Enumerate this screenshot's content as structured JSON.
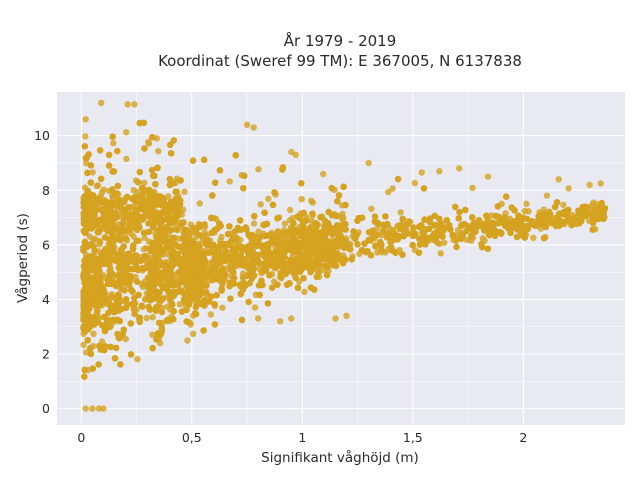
{
  "chart_data": {
    "type": "scatter",
    "title_line1": "År 1979 - 2019",
    "title_line2": "Koordinat (Sweref 99 TM): E 367005, N 6137838",
    "xlabel": "Signifikant våghöjd (m)",
    "ylabel": "Vågperiod (s)",
    "xlim": [
      -0.11,
      2.46
    ],
    "ylim": [
      -0.6,
      11.6
    ],
    "x_ticks": [
      0,
      0.5,
      1,
      1.5,
      2
    ],
    "x_tick_labels": [
      "0",
      "0,5",
      "1",
      "1,5",
      "2"
    ],
    "y_ticks": [
      0,
      2,
      4,
      6,
      8,
      10
    ],
    "y_tick_labels": [
      "0",
      "2",
      "4",
      "6",
      "8",
      "10"
    ],
    "grid": true,
    "background_color": "#e9e9f2",
    "marker_color": "#d4a21f",
    "marker_opacity": 0.8,
    "point_count_estimate": 6000,
    "trend_samples": [
      {
        "x": 0.05,
        "y_low": 1.0,
        "y_high": 10.0
      },
      {
        "x": 0.2,
        "y_low": 1.6,
        "y_high": 11.0
      },
      {
        "x": 0.5,
        "y_low": 2.5,
        "y_high": 9.5
      },
      {
        "x": 1.0,
        "y_low": 4.0,
        "y_high": 9.0
      },
      {
        "x": 1.5,
        "y_low": 5.3,
        "y_high": 8.4
      },
      {
        "x": 2.0,
        "y_low": 6.0,
        "y_high": 8.0
      },
      {
        "x": 2.35,
        "y_low": 6.6,
        "y_high": 8.2
      }
    ],
    "points": [
      [
        0.09,
        11.2
      ],
      [
        0.21,
        11.15
      ],
      [
        0.24,
        11.15
      ],
      [
        0.02,
        10.6
      ],
      [
        0.75,
        10.4
      ],
      [
        0.78,
        10.3
      ],
      [
        0.95,
        9.4
      ],
      [
        0.97,
        9.3
      ],
      [
        1.3,
        9.0
      ],
      [
        1.54,
        8.65
      ],
      [
        1.62,
        8.7
      ],
      [
        1.71,
        8.8
      ],
      [
        1.84,
        8.5
      ],
      [
        2.16,
        8.4
      ],
      [
        2.3,
        8.2
      ],
      [
        2.35,
        8.25
      ],
      [
        2.33,
        7.5
      ],
      [
        2.25,
        6.8
      ],
      [
        0.8,
        3.3
      ],
      [
        0.9,
        3.2
      ],
      [
        0.95,
        3.3
      ],
      [
        1.15,
        3.3
      ],
      [
        1.2,
        3.4
      ],
      [
        0.02,
        0.0
      ],
      [
        0.05,
        0.0
      ],
      [
        0.08,
        0.0
      ],
      [
        0.1,
        0.0
      ]
    ]
  }
}
